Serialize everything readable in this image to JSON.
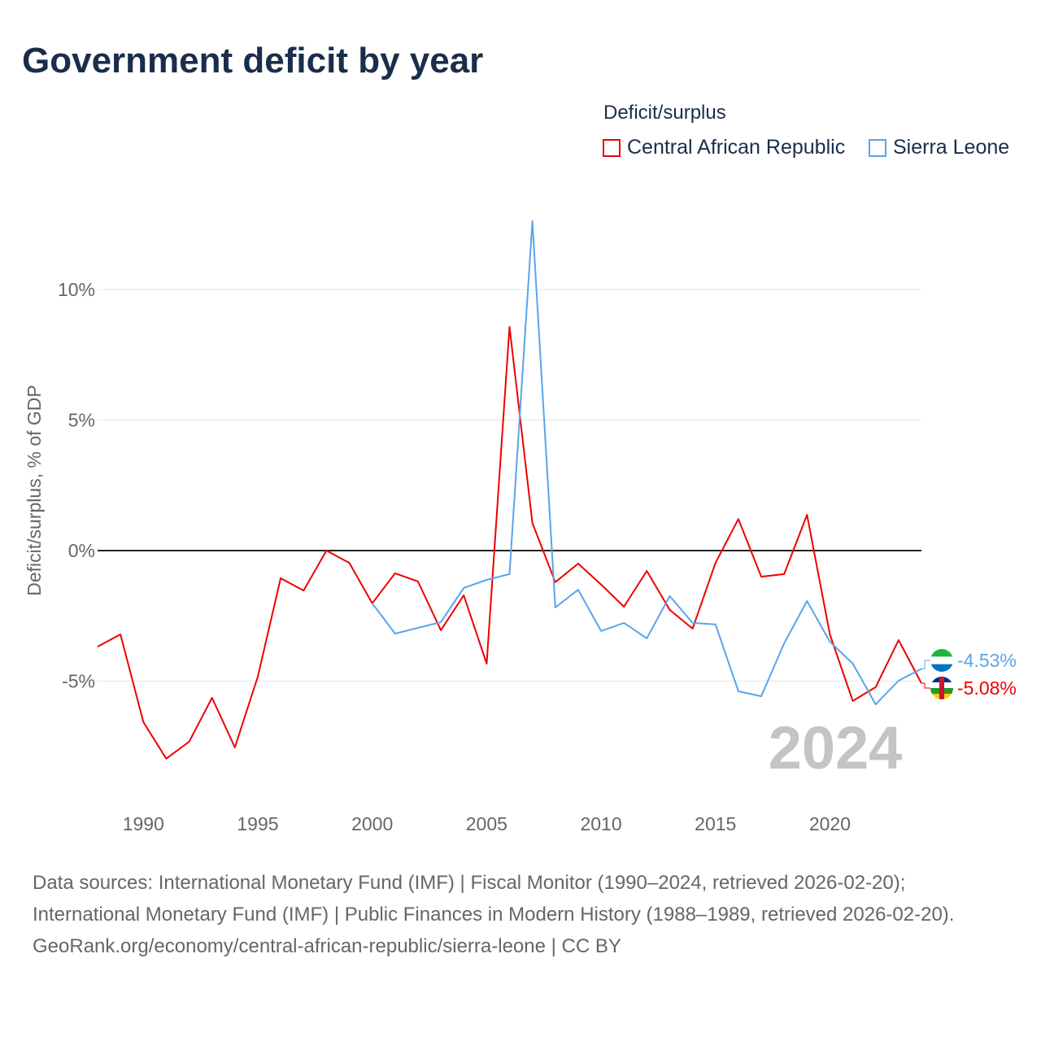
{
  "title": "Government deficit by year",
  "legend": {
    "title": "Deficit/surplus",
    "items": [
      {
        "name": "Central African Republic",
        "color": "#ee0000"
      },
      {
        "name": "Sierra Leone",
        "color": "#5ba4ea"
      }
    ]
  },
  "chart_data": {
    "type": "line",
    "title": "Government deficit by year",
    "xlabel": "",
    "ylabel": "Deficit/surplus, % of GDP",
    "xlim": [
      1988,
      2024
    ],
    "ylim": [
      -9.5,
      13.5
    ],
    "x_ticks": [
      1990,
      1995,
      2000,
      2005,
      2010,
      2015,
      2020
    ],
    "x_tick_labels": [
      "1990",
      "1995",
      "2000",
      "2005",
      "2010",
      "2015",
      "2020"
    ],
    "y_ticks": [
      -5,
      0,
      5,
      10
    ],
    "y_tick_labels": [
      "-5%",
      "0%",
      "5%",
      "10%"
    ],
    "grid": true,
    "current_year_label": "2024",
    "series": [
      {
        "name": "Central African Republic",
        "color": "#ee0000",
        "end_label": "-5.08%",
        "start_year": 1988,
        "values": [
          -3.68,
          -3.21,
          -6.57,
          -7.97,
          -7.32,
          -5.64,
          -7.54,
          -4.83,
          -1.06,
          -1.53,
          0.0,
          -0.47,
          -2.02,
          -0.87,
          -1.18,
          -3.05,
          -1.71,
          -4.33,
          8.57,
          1.06,
          -1.21,
          -0.5,
          -1.3,
          -2.15,
          -0.78,
          -2.27,
          -2.99,
          -0.47,
          1.21,
          -1.0,
          -0.9,
          1.37,
          -3.21,
          -5.76,
          -5.23,
          -3.43,
          -5.08
        ]
      },
      {
        "name": "Sierra Leone",
        "color": "#5ba4ea",
        "end_label": "-4.53%",
        "start_year": 2000,
        "values": [
          -2.02,
          -3.18,
          -2.96,
          -2.74,
          -1.43,
          -1.12,
          -0.9,
          12.62,
          -2.18,
          -1.5,
          -3.08,
          -2.77,
          -3.36,
          -1.74,
          -2.77,
          -2.83,
          -5.39,
          -5.58,
          -3.55,
          -1.93,
          -3.49,
          -4.33,
          -5.89,
          -4.98,
          -4.53
        ]
      }
    ]
  },
  "sources": {
    "line1": "Data sources: International Monetary Fund (IMF) | Fiscal Monitor (1990–2024, retrieved 2026-02-20); International Monetary Fund (IMF) | Public Finances in Modern History (1988–1989, retrieved 2026-02-20).",
    "line2": "GeoRank.org/economy/central-african-republic/sierra-leone | CC BY"
  }
}
